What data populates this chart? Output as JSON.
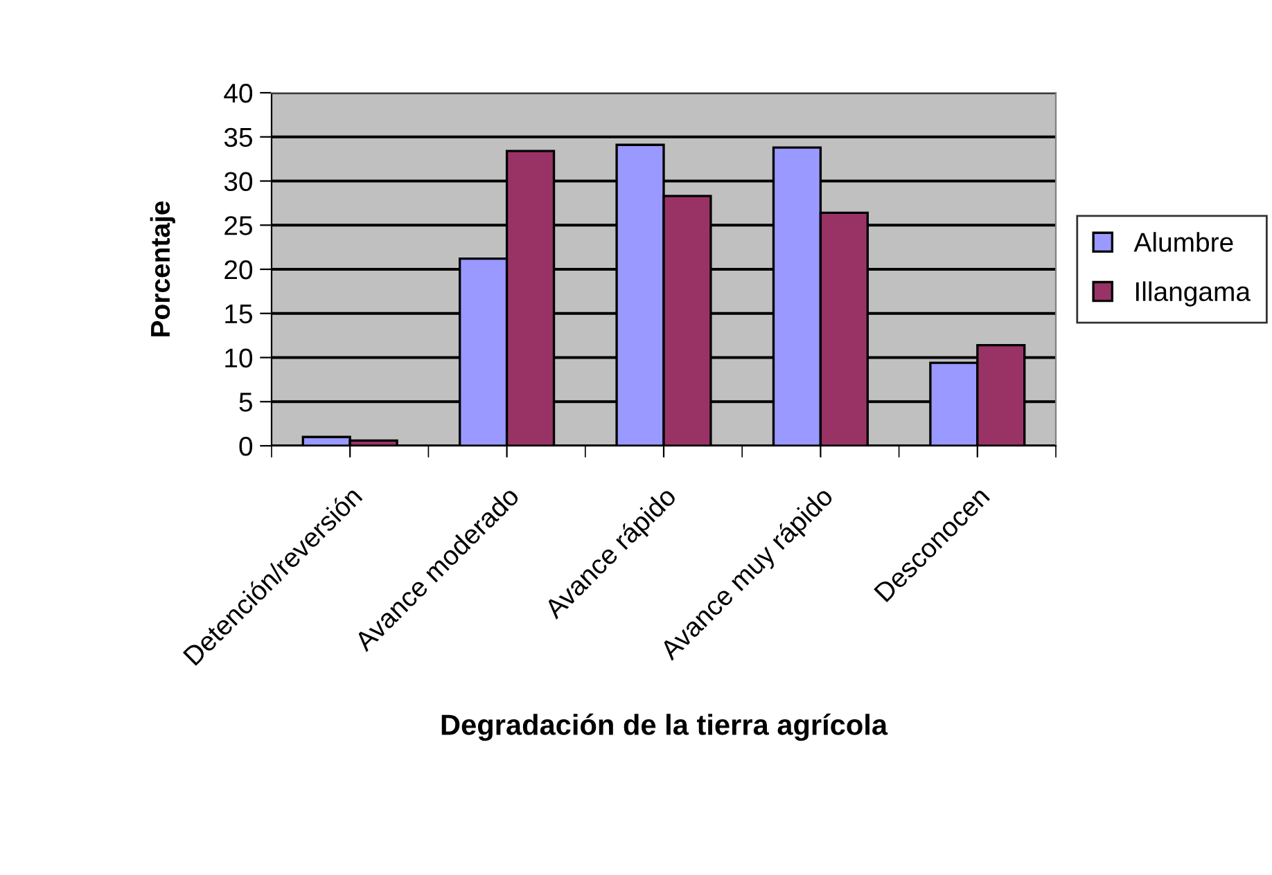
{
  "chart_data": {
    "type": "bar",
    "xlabel": "Degradación de la tierra agrícola",
    "ylabel": "Porcentaje",
    "categories": [
      "Detención/reversión",
      "Avance moderado",
      "Avance rápido",
      "Avance muy rápido",
      "Desconocen"
    ],
    "series": [
      {
        "name": "Alumbre",
        "color": "#9999ff",
        "values": [
          1.0,
          21.2,
          34.1,
          33.8,
          9.4
        ]
      },
      {
        "name": "Illangama",
        "color": "#993366",
        "values": [
          0.6,
          33.4,
          28.3,
          26.4,
          11.4
        ]
      }
    ],
    "ylim": [
      0,
      40
    ],
    "yticks": [
      0,
      5,
      10,
      15,
      20,
      25,
      30,
      35,
      40
    ],
    "grid": "y",
    "legend": "right"
  }
}
